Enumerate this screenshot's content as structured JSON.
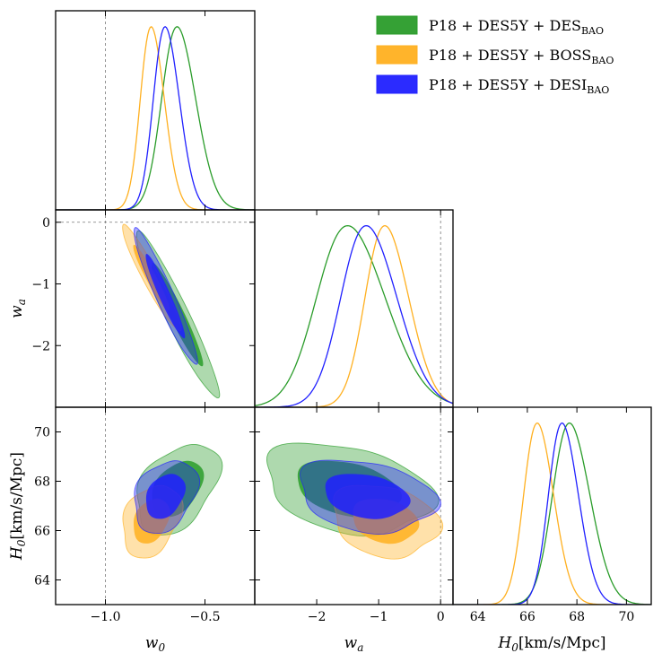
{
  "chart_data": {
    "type": "corner-triangle",
    "parameters": [
      {
        "key": "w0",
        "label": "w",
        "label_sub": "0",
        "range": [
          -1.25,
          -0.25
        ],
        "ticks": [
          -1.0,
          -0.5
        ],
        "tick_labels": [
          "−1.0",
          "−0.5"
        ]
      },
      {
        "key": "wa",
        "label": "w",
        "label_sub": "a",
        "range": [
          -3.0,
          0.2
        ],
        "ticks": [
          -2,
          -1,
          0
        ],
        "tick_labels": [
          "−2",
          "−1",
          "0"
        ]
      },
      {
        "key": "H0",
        "label": "H",
        "label_sub": "0",
        "label_suffix": "[km/s/Mpc]",
        "range": [
          63.0,
          71.0
        ],
        "ticks": [
          64,
          66,
          68,
          70
        ],
        "tick_labels": [
          "64",
          "66",
          "68",
          "70"
        ]
      }
    ],
    "reference_lines": {
      "w0": -1.0,
      "wa": 0.0
    },
    "series": [
      {
        "name": "P18 + DES5Y + DES",
        "name_sub": "BAO",
        "color": "#2a9c2a",
        "mean": {
          "w0": -0.64,
          "wa": -1.5,
          "H0": 67.7
        },
        "sd": {
          "w0": 0.085,
          "wa": 0.55,
          "H0": 0.75
        },
        "corr": {
          "w0_wa": -0.95,
          "w0_H0": 0.4,
          "wa_H0": -0.3
        }
      },
      {
        "name": "P18 + DES5Y + BOSS",
        "name_sub": "BAO",
        "color": "#ffb020",
        "mean": {
          "w0": -0.77,
          "wa": -0.9,
          "H0": 66.4
        },
        "sd": {
          "w0": 0.06,
          "wa": 0.35,
          "H0": 0.6
        },
        "corr": {
          "w0_wa": -0.95,
          "w0_H0": 0.3,
          "wa_H0": -0.2
        }
      },
      {
        "name": "P18 + DES5Y + DESI",
        "name_sub": "BAO",
        "color": "#2020ff",
        "mean": {
          "w0": -0.7,
          "wa": -1.2,
          "H0": 67.4
        },
        "sd": {
          "w0": 0.065,
          "wa": 0.45,
          "H0": 0.6
        },
        "corr": {
          "w0_wa": -0.95,
          "w0_H0": 0.3,
          "wa_H0": -0.25
        }
      }
    ]
  }
}
